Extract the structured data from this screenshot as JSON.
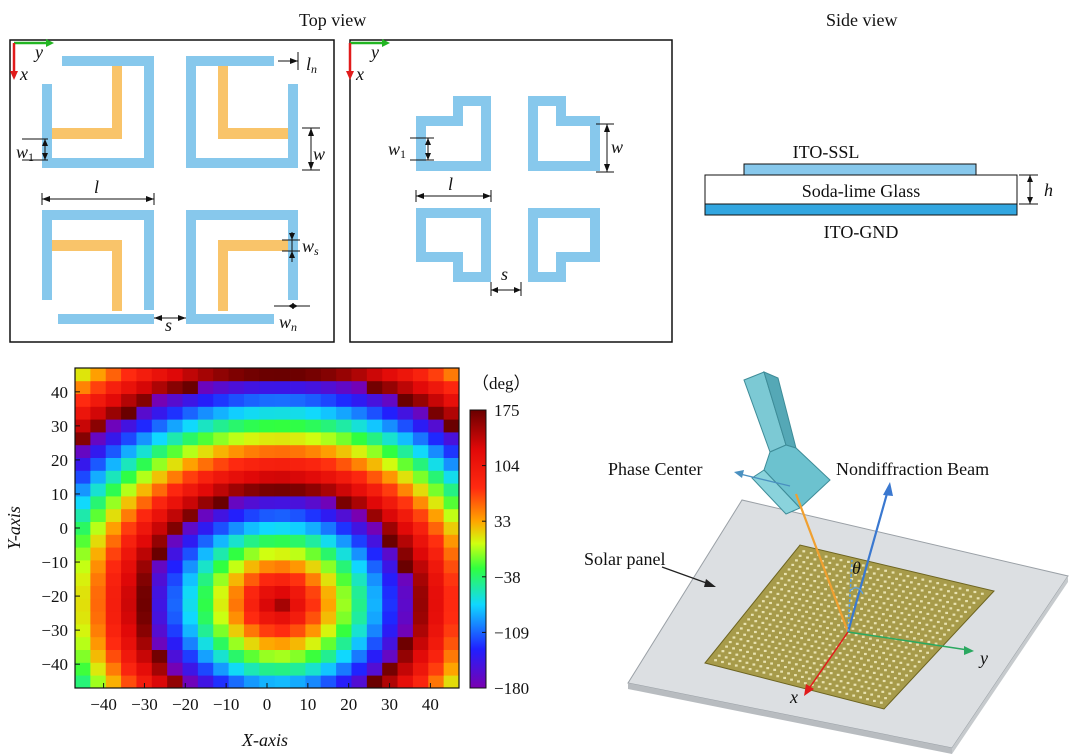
{
  "titles": {
    "top_view": "Top view",
    "side_view": "Side view"
  },
  "panel_a": {
    "axis_y": "y",
    "axis_x": "x",
    "dims": {
      "l": "l",
      "w": "w",
      "w1_main": "w",
      "w1_sub": "1",
      "ws_main": "w",
      "ws_sub": "s",
      "ln_main": "l",
      "ln_sub": "n",
      "wn_main": "w",
      "wn_sub": "n",
      "s": "s"
    }
  },
  "panel_b": {
    "axis_y": "y",
    "axis_x": "x",
    "dims": {
      "l": "l",
      "w": "w",
      "w1_main": "w",
      "w1_sub": "1",
      "s": "s"
    }
  },
  "side": {
    "top_layer": "ITO-SSL",
    "middle_layer": "Soda-lime Glass",
    "bottom_layer": "ITO-GND",
    "h": "h"
  },
  "colors": {
    "element": "#87c8ec",
    "stub": "#f9c46a",
    "x_axis": "#e11b1b",
    "y_axis": "#22b522",
    "beam": "#3a78d0",
    "feed_ray": "#f0a030"
  },
  "chart_data": {
    "type": "heatmap",
    "title": "",
    "xlabel": "X-axis",
    "ylabel": "Y-axis",
    "xlim": [
      -47,
      47
    ],
    "ylim": [
      -47,
      47
    ],
    "x_ticks": [
      "−40",
      "−30",
      "−20",
      "−10",
      "0",
      "10",
      "20",
      "30",
      "40"
    ],
    "y_ticks": [
      "40",
      "30",
      "20",
      "10",
      "0",
      "−10",
      "−20",
      "−30",
      "−40"
    ],
    "colorbar": {
      "unit": "（deg）",
      "ticks": [
        "175",
        "104",
        "33",
        "−38",
        "−109",
        "−180"
      ],
      "range": [
        -180,
        175
      ]
    },
    "grid_size": 25,
    "phase_center": [
      3,
      -22
    ]
  },
  "scene": {
    "phase_center": "Phase Center",
    "beam": "Nondiffraction Beam",
    "panel": "Solar panel",
    "theta": "θ",
    "axis_x": "x",
    "axis_y": "y"
  }
}
